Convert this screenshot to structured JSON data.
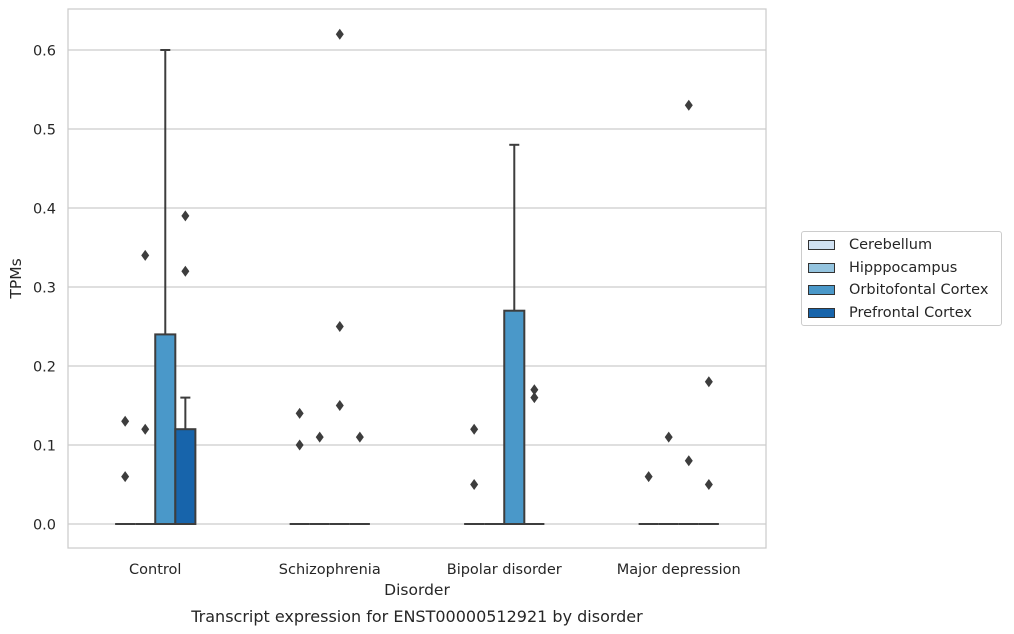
{
  "chart_data": {
    "type": "box",
    "title": "Transcript expression for ENST00000512921 by disorder",
    "xlabel": "Disorder",
    "ylabel": "TPMs",
    "ylim": [
      -0.03,
      0.655
    ],
    "yticks": [
      0.0,
      0.1,
      0.2,
      0.3,
      0.4,
      0.5,
      0.6
    ],
    "yticklabels": [
      "0.0",
      "0.1",
      "0.2",
      "0.3",
      "0.4",
      "0.5",
      "0.6"
    ],
    "categories": [
      "Control",
      "Schizophrenia",
      "Bipolar disorder",
      "Major depression"
    ],
    "grid": "horizontal",
    "legend_position": "right",
    "series": [
      {
        "name": "Cerebellum",
        "color": "#d0e1f2",
        "boxes": [
          {
            "category": "Control",
            "q1": 0,
            "median": 0,
            "q3": 0,
            "whisker_low": 0,
            "whisker_high": 0,
            "outliers": [
              0.13,
              0.06
            ]
          },
          {
            "category": "Schizophrenia",
            "q1": 0,
            "median": 0,
            "q3": 0,
            "whisker_low": 0,
            "whisker_high": 0,
            "outliers": [
              0.14,
              0.1
            ]
          },
          {
            "category": "Bipolar disorder",
            "q1": 0,
            "median": 0,
            "q3": 0,
            "whisker_low": 0,
            "whisker_high": 0,
            "outliers": [
              0.12,
              0.05
            ]
          },
          {
            "category": "Major depression",
            "q1": 0,
            "median": 0,
            "q3": 0,
            "whisker_low": 0,
            "whisker_high": 0,
            "outliers": [
              0.06
            ]
          }
        ]
      },
      {
        "name": "Hipppocampus",
        "color": "#94c4df",
        "boxes": [
          {
            "category": "Control",
            "q1": 0,
            "median": 0,
            "q3": 0,
            "whisker_low": 0,
            "whisker_high": 0,
            "outliers": [
              0.34,
              0.12
            ]
          },
          {
            "category": "Schizophrenia",
            "q1": 0,
            "median": 0,
            "q3": 0,
            "whisker_low": 0,
            "whisker_high": 0,
            "outliers": [
              0.11
            ]
          },
          {
            "category": "Bipolar disorder",
            "q1": 0,
            "median": 0,
            "q3": 0,
            "whisker_low": 0,
            "whisker_high": 0,
            "outliers": []
          },
          {
            "category": "Major depression",
            "q1": 0,
            "median": 0,
            "q3": 0,
            "whisker_low": 0,
            "whisker_high": 0,
            "outliers": [
              0.11
            ]
          }
        ]
      },
      {
        "name": "Orbitofontal Cortex",
        "color": "#4a98c9",
        "boxes": [
          {
            "category": "Control",
            "q1": 0,
            "median": 0,
            "q3": 0.24,
            "whisker_low": 0,
            "whisker_high": 0.6,
            "outliers": []
          },
          {
            "category": "Schizophrenia",
            "q1": 0,
            "median": 0,
            "q3": 0,
            "whisker_low": 0,
            "whisker_high": 0,
            "outliers": [
              0.62,
              0.25,
              0.15
            ]
          },
          {
            "category": "Bipolar disorder",
            "q1": 0,
            "median": 0,
            "q3": 0.27,
            "whisker_low": 0,
            "whisker_high": 0.48,
            "outliers": []
          },
          {
            "category": "Major depression",
            "q1": 0,
            "median": 0,
            "q3": 0,
            "whisker_low": 0,
            "whisker_high": 0,
            "outliers": [
              0.53,
              0.08
            ]
          }
        ]
      },
      {
        "name": "Prefrontal Cortex",
        "color": "#1764ab",
        "boxes": [
          {
            "category": "Control",
            "q1": 0,
            "median": 0,
            "q3": 0.12,
            "whisker_low": 0,
            "whisker_high": 0.16,
            "outliers": [
              0.39,
              0.32
            ]
          },
          {
            "category": "Schizophrenia",
            "q1": 0,
            "median": 0,
            "q3": 0,
            "whisker_low": 0,
            "whisker_high": 0,
            "outliers": [
              0.11
            ]
          },
          {
            "category": "Bipolar disorder",
            "q1": 0,
            "median": 0,
            "q3": 0,
            "whisker_low": 0,
            "whisker_high": 0,
            "outliers": [
              0.17,
              0.16
            ]
          },
          {
            "category": "Major depression",
            "q1": 0,
            "median": 0,
            "q3": 0,
            "whisker_low": 0,
            "whisker_high": 0,
            "outliers": [
              0.18,
              0.05
            ]
          }
        ]
      }
    ]
  }
}
